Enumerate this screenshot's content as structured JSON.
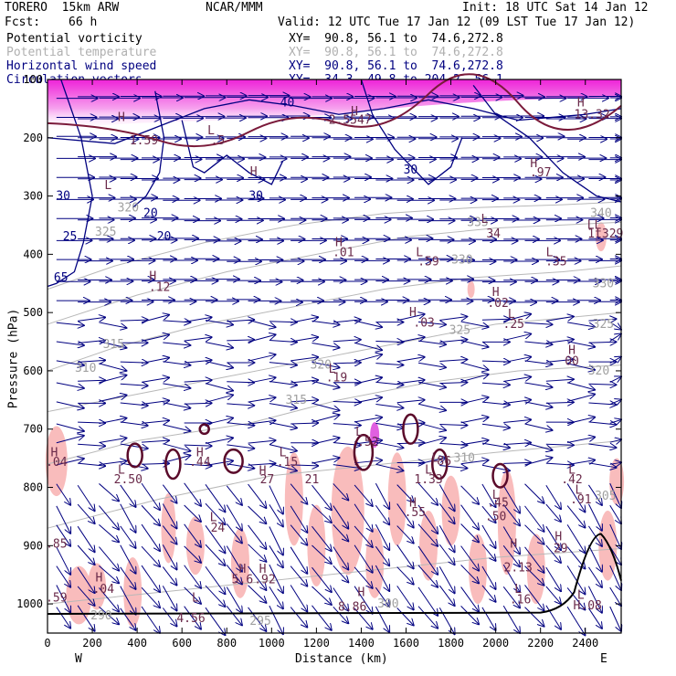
{
  "header": {
    "model": "TORERO  15km ARW",
    "center": "NCAR/MMM",
    "init": "Init: 18 UTC Sat 14 Jan 12",
    "fcst_label": "Fcst:",
    "fcst_value": "66 h",
    "valid": "Valid: 12 UTC Tue 17 Jan 12 (09 LST Tue 17 Jan 12)"
  },
  "legend": [
    {
      "label": "Potential vorticity",
      "section": "XY=  90.8, 56.1 to  74.6,272.8",
      "color": "#000000"
    },
    {
      "label": "Potential temperature",
      "section": "XY=  90.8, 56.1 to  74.6,272.8",
      "color": "#b0b0b0"
    },
    {
      "label": "Horizontal wind speed",
      "section": "XY=  90.8, 56.1 to  74.6,272.8",
      "color": "#000080"
    },
    {
      "label": "Circulation vectors",
      "section": "XY=  34.3, 49.8 to 204.2, 56.1",
      "color": "#000080"
    }
  ],
  "chart_data": {
    "type": "cross-section",
    "xlabel": "Distance (km)",
    "ylabel": "Pressure (hPa)",
    "xlim": [
      0,
      2560
    ],
    "ylim": [
      1050,
      100
    ],
    "x_ticks": [
      0,
      200,
      400,
      600,
      800,
      1000,
      1200,
      1400,
      1600,
      1800,
      2000,
      2200,
      2400
    ],
    "y_ticks": [
      100,
      200,
      300,
      400,
      500,
      600,
      700,
      800,
      900,
      1000
    ],
    "x_tick_labels": [
      "0",
      "200",
      "400",
      "600",
      "800",
      "1000",
      "1200",
      "1400",
      "1600",
      "1800",
      "2000",
      "2200",
      "2400"
    ],
    "y_tick_labels": [
      "100",
      "200",
      "300",
      "400",
      "500",
      "600",
      "700",
      "800",
      "900",
      "1000"
    ],
    "west_label": "W",
    "east_label": "E",
    "theta_labels": [
      {
        "x": 260,
        "p": 362,
        "text": "325"
      },
      {
        "x": 360,
        "p": 320,
        "text": "320"
      },
      {
        "x": 295,
        "p": 555,
        "text": "315"
      },
      {
        "x": 170,
        "p": 595,
        "text": "310"
      },
      {
        "x": 1110,
        "p": 650,
        "text": "315"
      },
      {
        "x": 1220,
        "p": 590,
        "text": "320"
      },
      {
        "x": 1840,
        "p": 530,
        "text": "325"
      },
      {
        "x": 1850,
        "p": 410,
        "text": "330"
      },
      {
        "x": 1920,
        "p": 345,
        "text": "335"
      },
      {
        "x": 2470,
        "p": 330,
        "text": "340"
      },
      {
        "x": 2480,
        "p": 450,
        "text": "330"
      },
      {
        "x": 2480,
        "p": 520,
        "text": "325"
      },
      {
        "x": 2460,
        "p": 600,
        "text": "320"
      },
      {
        "x": 1860,
        "p": 750,
        "text": "310"
      },
      {
        "x": 2490,
        "p": 815,
        "text": "305"
      },
      {
        "x": 240,
        "p": 1020,
        "text": "290"
      },
      {
        "x": 950,
        "p": 1030,
        "text": "295"
      },
      {
        "x": 1520,
        "p": 1000,
        "text": "300"
      }
    ],
    "speed_labels": [
      {
        "x": 70,
        "p": 300,
        "text": "30"
      },
      {
        "x": 100,
        "p": 370,
        "text": "25"
      },
      {
        "x": 60,
        "p": 440,
        "text": "65"
      },
      {
        "x": 460,
        "p": 330,
        "text": "20"
      },
      {
        "x": 520,
        "p": 370,
        "text": "20"
      },
      {
        "x": 930,
        "p": 300,
        "text": "30"
      },
      {
        "x": 1620,
        "p": 255,
        "text": "30"
      },
      {
        "x": 1070,
        "p": 140,
        "text": "40"
      }
    ],
    "hl_labels": [
      {
        "x": 330,
        "p": 165,
        "text": "H"
      },
      {
        "x": 430,
        "p": 205,
        "text": "1.59"
      },
      {
        "x": 1370,
        "p": 155,
        "text": "H"
      },
      {
        "x": 1350,
        "p": 170,
        "text": "2.5547"
      },
      {
        "x": 2380,
        "p": 140,
        "text": "H"
      },
      {
        "x": 2430,
        "p": 160,
        "text": "13.32"
      },
      {
        "x": 730,
        "p": 188,
        "text": "L"
      },
      {
        "x": 760,
        "p": 205,
        "text": ".5"
      },
      {
        "x": 920,
        "p": 258,
        "text": "H"
      },
      {
        "x": 270,
        "p": 282,
        "text": "L"
      },
      {
        "x": 2170,
        "p": 244,
        "text": "H"
      },
      {
        "x": 2200,
        "p": 260,
        "text": ".97"
      },
      {
        "x": 1950,
        "p": 340,
        "text": "L"
      },
      {
        "x": 1990,
        "p": 365,
        "text": "34"
      },
      {
        "x": 2440,
        "p": 350,
        "text": "LL"
      },
      {
        "x": 2490,
        "p": 365,
        "text": "1t329"
      },
      {
        "x": 1300,
        "p": 380,
        "text": "H"
      },
      {
        "x": 1320,
        "p": 397,
        "text": ".01"
      },
      {
        "x": 1660,
        "p": 397,
        "text": "L"
      },
      {
        "x": 1700,
        "p": 413,
        "text": ".59"
      },
      {
        "x": 2240,
        "p": 397,
        "text": "L"
      },
      {
        "x": 2270,
        "p": 413,
        "text": ".35"
      },
      {
        "x": 470,
        "p": 438,
        "text": "H"
      },
      {
        "x": 500,
        "p": 457,
        "text": ".12"
      },
      {
        "x": 2000,
        "p": 465,
        "text": "H"
      },
      {
        "x": 2010,
        "p": 484,
        "text": ".02"
      },
      {
        "x": 2070,
        "p": 503,
        "text": "L"
      },
      {
        "x": 2080,
        "p": 520,
        "text": ".25"
      },
      {
        "x": 1630,
        "p": 500,
        "text": "H"
      },
      {
        "x": 1680,
        "p": 518,
        "text": ".03"
      },
      {
        "x": 2340,
        "p": 565,
        "text": "H"
      },
      {
        "x": 2340,
        "p": 584,
        "text": "00"
      },
      {
        "x": 1270,
        "p": 597,
        "text": "L"
      },
      {
        "x": 1290,
        "p": 612,
        "text": ".19"
      },
      {
        "x": 30,
        "p": 740,
        "text": "H"
      },
      {
        "x": 40,
        "p": 757,
        "text": ".04"
      },
      {
        "x": 330,
        "p": 770,
        "text": "L"
      },
      {
        "x": 360,
        "p": 787,
        "text": "2.50"
      },
      {
        "x": 680,
        "p": 740,
        "text": "H"
      },
      {
        "x": 680,
        "p": 757,
        "text": ".44"
      },
      {
        "x": 1050,
        "p": 740,
        "text": "L"
      },
      {
        "x": 1070,
        "p": 757,
        "text": ".15"
      },
      {
        "x": 1390,
        "p": 705,
        "text": "L"
      },
      {
        "x": 1430,
        "p": 722,
        "text": ".52"
      },
      {
        "x": 1730,
        "p": 750,
        "text": "L"
      },
      {
        "x": 1770,
        "p": 755,
        "text": "86"
      },
      {
        "x": 960,
        "p": 772,
        "text": "H"
      },
      {
        "x": 980,
        "p": 787,
        "text": "27"
      },
      {
        "x": 1180,
        "p": 787,
        "text": "21"
      },
      {
        "x": 1700,
        "p": 770,
        "text": "L"
      },
      {
        "x": 1700,
        "p": 787,
        "text": "1.33"
      },
      {
        "x": 2340,
        "p": 770,
        "text": "L"
      },
      {
        "x": 2340,
        "p": 787,
        "text": ".42"
      },
      {
        "x": 2370,
        "p": 805,
        "text": "L"
      },
      {
        "x": 2380,
        "p": 821,
        "text": ".91"
      },
      {
        "x": 2000,
        "p": 813,
        "text": "L"
      },
      {
        "x": 2010,
        "p": 827,
        "text": ".45"
      },
      {
        "x": 1630,
        "p": 827,
        "text": "H"
      },
      {
        "x": 1640,
        "p": 843,
        "text": ".55"
      },
      {
        "x": 2000,
        "p": 850,
        "text": ".50"
      },
      {
        "x": 740,
        "p": 852,
        "text": "L"
      },
      {
        "x": 760,
        "p": 870,
        "text": "24"
      },
      {
        "x": 40,
        "p": 897,
        "text": ".85"
      },
      {
        "x": 2080,
        "p": 897,
        "text": "H"
      },
      {
        "x": 2280,
        "p": 885,
        "text": "H"
      },
      {
        "x": 2290,
        "p": 905,
        "text": "29"
      },
      {
        "x": 870,
        "p": 940,
        "text": "H"
      },
      {
        "x": 960,
        "p": 940,
        "text": "H"
      },
      {
        "x": 870,
        "p": 958,
        "text": "5.6"
      },
      {
        "x": 970,
        "p": 958,
        "text": ".92"
      },
      {
        "x": 2100,
        "p": 938,
        "text": "2.13"
      },
      {
        "x": 230,
        "p": 955,
        "text": "H"
      },
      {
        "x": 250,
        "p": 975,
        "text": ".04"
      },
      {
        "x": 1400,
        "p": 980,
        "text": "H"
      },
      {
        "x": 2100,
        "p": 975,
        "text": "L"
      },
      {
        "x": 2110,
        "p": 993,
        "text": ".16"
      },
      {
        "x": 660,
        "p": 990,
        "text": "L"
      },
      {
        "x": 40,
        "p": 990,
        "text": ".59"
      },
      {
        "x": 1360,
        "p": 1005,
        "text": "8.86"
      },
      {
        "x": 2380,
        "p": 985,
        "text": "L"
      },
      {
        "x": 2410,
        "p": 1003,
        "text": "H.08"
      },
      {
        "x": 640,
        "p": 1025,
        "text": "4.56"
      }
    ]
  }
}
